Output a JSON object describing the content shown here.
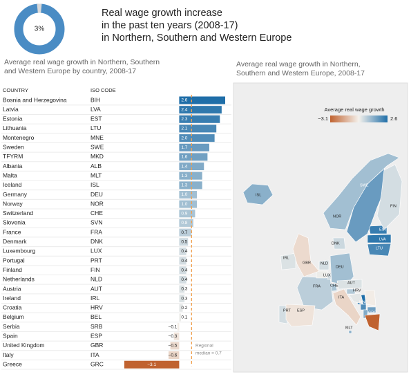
{
  "title_lines": [
    "Real wage growth increase",
    "in the past ten years (2008-17)",
    "in Northern, Southern and Western Europe"
  ],
  "chart_data": [
    {
      "type": "pie",
      "values": [
        3
      ],
      "value_labels": [
        "3%"
      ],
      "color": "#d9d9d9",
      "ring_color": "#4a8cc4"
    },
    {
      "type": "bar",
      "title_lines": [
        "Average real wage growth in Northern, Southern",
        "and Western Europe  by country, 2008-17"
      ],
      "column_headers": [
        "COUNTRY",
        "ISO CODE"
      ],
      "categories": [
        "Bosnia and Herzegovina",
        "Latvia",
        "Estonia",
        "Lithuania",
        "Montenegro",
        "Sweden",
        "TFYRM",
        "Albania",
        "Malta",
        "Iceland",
        "Germany",
        "Norway",
        "Switzerland",
        "Slovenia",
        "France",
        "Denmark",
        "Luxembourg",
        "Portugal",
        "Finland",
        "Netherlands",
        "Austria",
        "Ireland",
        "Croatia",
        "Belgium",
        "Serbia",
        "Spain",
        "United Kingdom",
        "Italy",
        "Greece"
      ],
      "codes": [
        "BIH",
        "LVA",
        "EST",
        "LTU",
        "MNE",
        "SWE",
        "MKD",
        "ALB",
        "MLT",
        "ISL",
        "DEU",
        "NOR",
        "CHE",
        "SVN",
        "FRA",
        "DNK",
        "LUX",
        "PRT",
        "FIN",
        "NLD",
        "AUT",
        "IRL",
        "HRV",
        "BEL",
        "SRB",
        "ESP",
        "GBR",
        "ITA",
        "GRC"
      ],
      "values": [
        2.6,
        2.4,
        2.3,
        2.1,
        2.0,
        1.7,
        1.6,
        1.4,
        1.3,
        1.3,
        1.0,
        1.0,
        0.9,
        0.8,
        0.7,
        0.5,
        0.4,
        0.4,
        0.4,
        0.4,
        0.3,
        0.3,
        0.2,
        0.1,
        -0.1,
        -0.3,
        -0.5,
        -0.6,
        -3.1
      ],
      "value_labels": [
        "2.6",
        "2.4",
        "2.3",
        "2.1",
        "2.0",
        "1.7",
        "1.6",
        "1.4",
        "1.3",
        "1.3",
        "1.0",
        "1.0",
        "0.9",
        "0.8",
        "0.7",
        "0.5",
        "0.4",
        "0.4",
        "0.4",
        "0.4",
        "0.3",
        "0.3",
        "0.2",
        "0.1",
        "−0.1",
        "−0.3",
        "−0.5",
        "−0.6",
        "−3.1"
      ],
      "median": 0.7,
      "median_color": "#f0a050",
      "annotation_lines": [
        "Regional",
        "median = 0.7"
      ]
    },
    {
      "type": "map",
      "title_lines": [
        "Average real wage growth in Northern,",
        "Southern and Western Europe, 2008-17"
      ],
      "legend_title": "Average real wage growth",
      "legend_min": -3.1,
      "legend_min_label": "−3.1",
      "legend_max": 2.6,
      "color_scale": [
        "#c0622f",
        "#f4f1ec",
        "#1f6ea8"
      ]
    }
  ]
}
